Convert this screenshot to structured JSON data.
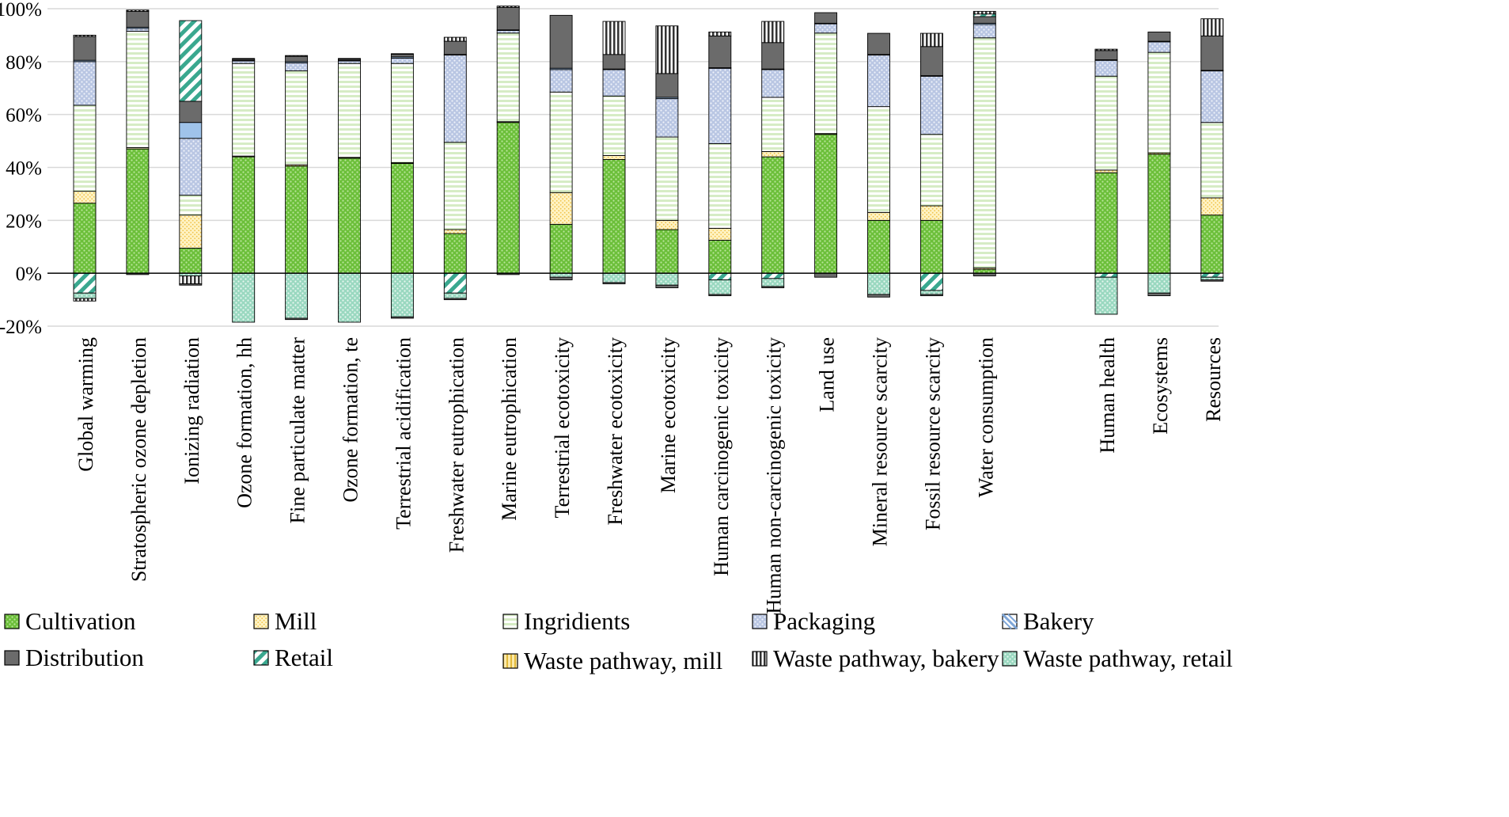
{
  "chart_data": {
    "type": "bar",
    "stacked": true,
    "ylim": [
      -20,
      100
    ],
    "yticks": [
      -20,
      0,
      20,
      40,
      60,
      80,
      100
    ],
    "ytick_labels": [
      "-20%",
      "0%",
      "20%",
      "40%",
      "60%",
      "80%",
      "100%"
    ],
    "grid": true,
    "legend_position": "bottom",
    "categories": [
      "Global warming",
      "Stratospheric ozone depletion",
      "Ionizing radiation",
      "Ozone formation, hh",
      "Fine particulate matter",
      "Ozone formation, te",
      "Terrestrial acidification",
      "Freshwater eutrophication",
      "Marine eutrophication",
      "Terrestrial ecotoxicity",
      "Freshwater ecotoxicity",
      "Marine ecotoxicity",
      "Human carcinogenic toxicity",
      "Human non-carcinogenic toxicity",
      "Land use",
      "Mineral resource scarcity",
      "Fossil resource scarcity",
      "Water consumption",
      "Human health",
      "Ecosystems",
      "Resources"
    ],
    "series": [
      {
        "name": "Cultivation",
        "values": [
          26.5,
          47,
          9.5,
          44,
          40.5,
          43.5,
          41.5,
          15,
          57,
          18.5,
          43,
          16.5,
          12.5,
          44,
          52.5,
          20,
          20,
          1.5,
          38,
          45,
          22
        ]
      },
      {
        "name": "Mill",
        "values": [
          4.5,
          0.5,
          12.5,
          0.3,
          0.5,
          0.3,
          0.3,
          1.5,
          0.3,
          12,
          1.5,
          3.5,
          4.5,
          2,
          0.3,
          3,
          5.5,
          0.5,
          1,
          0.5,
          6.5
        ]
      },
      {
        "name": "Ingridients",
        "values": [
          32.5,
          44,
          7.5,
          35,
          35.5,
          35.5,
          37.5,
          33,
          33.5,
          38,
          22.5,
          31.5,
          32,
          20.5,
          38,
          40,
          27,
          87,
          35.5,
          38,
          28.5
        ]
      },
      {
        "name": "Packaging",
        "values": [
          16.5,
          1,
          21.5,
          1,
          3,
          1,
          2,
          33,
          1,
          8.5,
          10,
          14.5,
          28.5,
          10.5,
          3.5,
          19.5,
          22,
          5,
          6,
          4,
          19.5
        ]
      },
      {
        "name": "Bakery",
        "values": [
          0.5,
          0.5,
          6,
          0.2,
          0.5,
          0.2,
          0.5,
          0.2,
          0.2,
          0.5,
          0.2,
          0.5,
          0.2,
          0.2,
          0.2,
          0.2,
          0.2,
          0.5,
          0.2,
          0.2,
          0.2
        ]
      },
      {
        "name": "Distribution",
        "values": [
          9,
          6,
          8,
          0.5,
          2,
          0.5,
          1,
          5,
          8.5,
          20,
          5.5,
          9,
          12,
          10,
          4,
          8,
          11,
          2.5,
          3.5,
          3.5,
          13
        ]
      },
      {
        "name": "Retail",
        "values": [
          -7.5,
          0,
          30.5,
          0,
          0,
          0,
          0,
          -7.5,
          0,
          0,
          0,
          0,
          -2.5,
          -2,
          0,
          0,
          -6.5,
          1,
          -1.5,
          0,
          -1.5
        ]
      },
      {
        "name": "Waste pathway, mill",
        "values": [
          0,
          0,
          0,
          0,
          0,
          0,
          0,
          0,
          0,
          0,
          0,
          0,
          0,
          0,
          0,
          0,
          0,
          0,
          0,
          0,
          0
        ]
      },
      {
        "name": "Waste pathway, bakery",
        "values": [
          0.5,
          0.5,
          0,
          0.2,
          0.3,
          0.2,
          0.2,
          1.5,
          0.5,
          0,
          12.5,
          18,
          1.5,
          8,
          0,
          0,
          5,
          1,
          0.5,
          0,
          6.5
        ]
      },
      {
        "name": "Waste pathway, retail",
        "values": [
          -2,
          0,
          -1,
          -18.5,
          -17,
          -18.5,
          -16.5,
          -2,
          0,
          -1.5,
          -3.5,
          -4.5,
          -5.5,
          -3,
          0,
          -8,
          -1.5,
          0,
          -14,
          -7.5,
          -1
        ]
      }
    ],
    "negative_extras": [
      {
        "series": "Waste pathway, bakery",
        "values": [
          -1,
          0,
          -3,
          0,
          0,
          0,
          0,
          0,
          0,
          0,
          0,
          0,
          0,
          0,
          0,
          0,
          0,
          0,
          0,
          0,
          0
        ]
      },
      {
        "series": "Distribution",
        "values": [
          0,
          -0.5,
          -0.5,
          0,
          -0.5,
          0,
          -0.5,
          -0.5,
          -0.5,
          -1,
          -0.5,
          -1,
          -0.5,
          -0.5,
          -1.5,
          -1,
          -0.5,
          -1,
          0,
          -1,
          -0.5
        ]
      }
    ]
  },
  "series_colors": {
    "Cultivation": "#7ac142",
    "Mill": "#fbe49a",
    "Ingridients": "#e6f2dc",
    "Packaging": "#c9d4ea",
    "Bakery": "#8fb8e6",
    "Distribution": "#6f6f6f",
    "Retail": "#3aa88f",
    "Waste pathway, mill": "#fbe49a",
    "Waste pathway, bakery": "#555555",
    "Waste pathway, retail": "#a8dcc8"
  },
  "legend": [
    "Cultivation",
    "Mill",
    "Ingridients",
    "Packaging",
    "Bakery",
    "Distribution",
    "Retail",
    "Waste pathway, mill",
    "Waste pathway, bakery",
    "Waste pathway, retail"
  ]
}
